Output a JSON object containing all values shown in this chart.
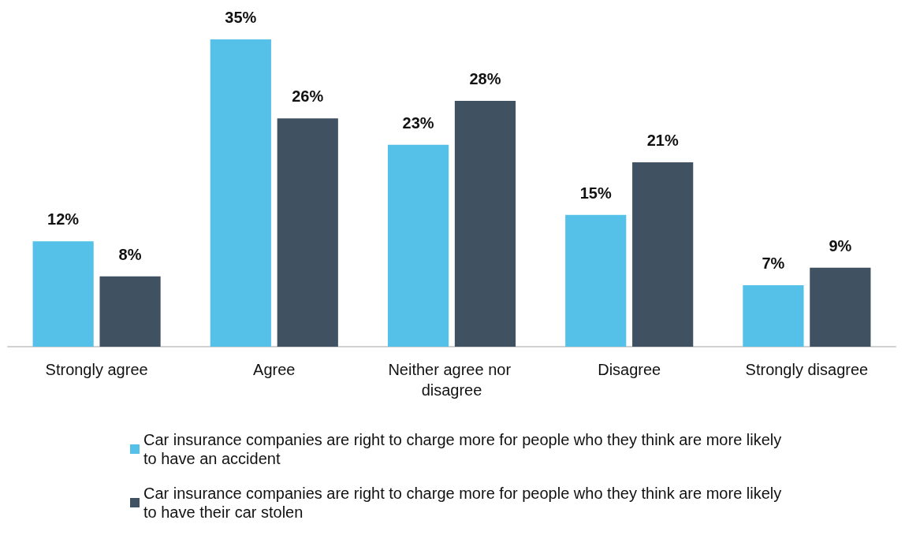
{
  "chart_data": {
    "type": "bar",
    "categories": [
      "Strongly agree",
      "Agree",
      "Neither agree nor disagree",
      "Disagree",
      "Strongly disagree"
    ],
    "series": [
      {
        "name": "Car insurance companies are right to charge more for people who they think are more likely to have an accident",
        "color": "#56c1e8",
        "values": [
          12,
          35,
          23,
          15,
          7
        ],
        "value_labels": [
          "12%",
          "35%",
          "23%",
          "15%",
          "7%"
        ]
      },
      {
        "name": "Car insurance companies are right to charge more for people who they think are more likely to have their car stolen",
        "color": "#405261",
        "values": [
          8,
          26,
          28,
          21,
          9
        ],
        "value_labels": [
          "8%",
          "26%",
          "28%",
          "21%",
          "9%"
        ]
      }
    ],
    "tick_labels": "x",
    "legend": "bottom"
  }
}
